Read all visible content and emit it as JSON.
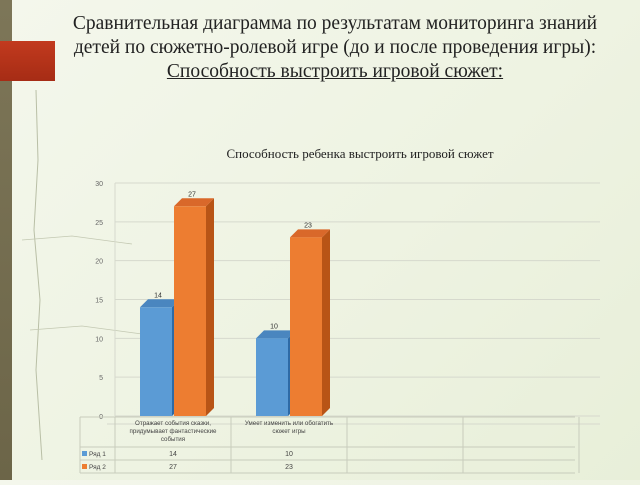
{
  "slide": {
    "title_line1": "Сравнительная диаграмма по результатам мониторинга знаний",
    "title_line2": "детей по сюжетно-ролевой игре (до и после проведения игры):",
    "title_line3": "Способность выстроить игровой сюжет:"
  },
  "colors": {
    "series1": "#5b9bd5",
    "series2": "#ed7d31",
    "accent_strip": "#7d7658",
    "accent_tab": "#c23a1e"
  },
  "chart_data": {
    "type": "bar",
    "title": "Способность ребенка выстроить игровой сюжет",
    "categories": [
      "Отражает события сказки, придумывает фантастические события",
      "Умеет изменить или обогатить сюжет игры"
    ],
    "series": [
      {
        "name": "Ряд 1",
        "values": [
          14,
          10
        ]
      },
      {
        "name": "Ряд 2",
        "values": [
          27,
          23
        ]
      }
    ],
    "ylim": [
      0,
      30
    ],
    "yticks": [
      0,
      5,
      10,
      15,
      20,
      25,
      30
    ],
    "grid": true,
    "legend": "data-table"
  }
}
